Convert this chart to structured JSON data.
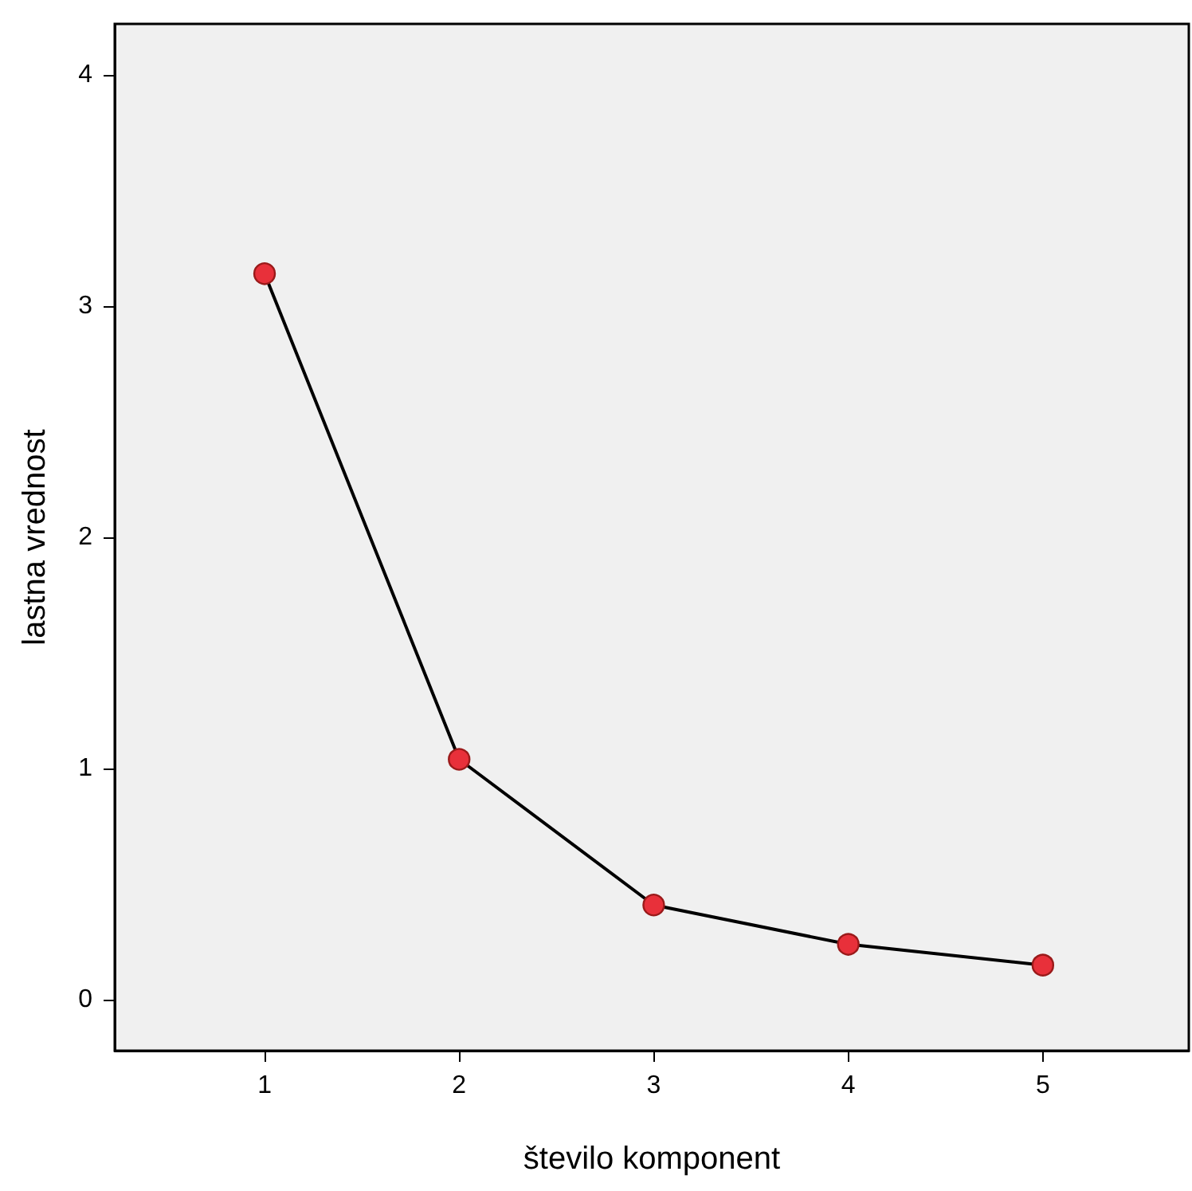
{
  "chart_data": {
    "type": "line",
    "xlabel": "število komponent",
    "ylabel": "lastna vrednost",
    "x": [
      1,
      2,
      3,
      4,
      5
    ],
    "series": [
      {
        "color": "#e8303a",
        "values": [
          3.14,
          1.04,
          0.41,
          0.24,
          0.15
        ]
      }
    ],
    "xlim": [
      0.23,
      5.75
    ],
    "xticks": [
      1,
      2,
      3,
      4,
      5
    ],
    "ylim": [
      -0.22,
      4.22
    ],
    "yticks": [
      0,
      1,
      2,
      3,
      4
    ],
    "grid": false,
    "marker": "circle",
    "line_style": "solid"
  }
}
